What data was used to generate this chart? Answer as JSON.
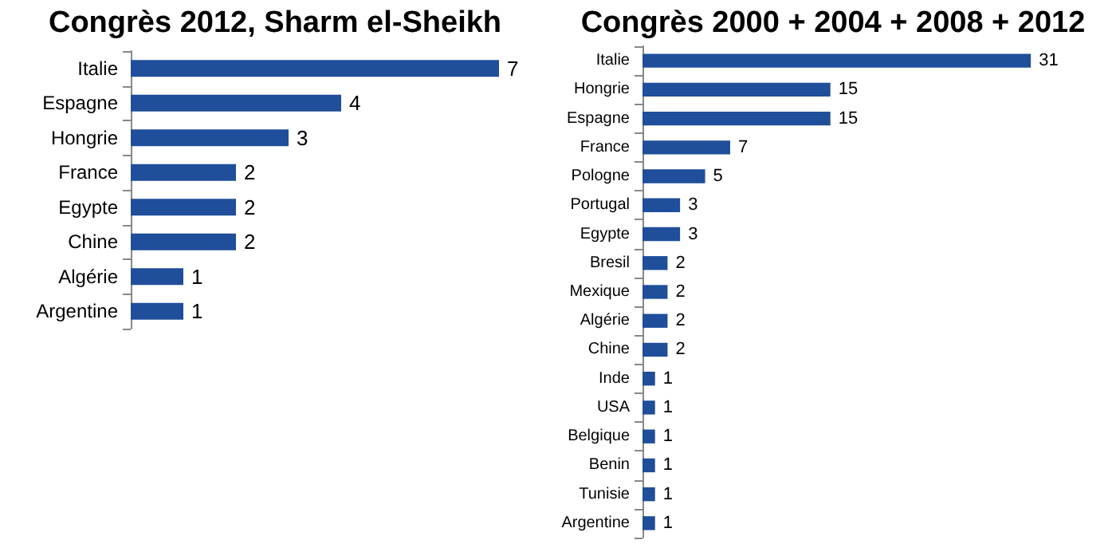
{
  "chart_data": [
    {
      "type": "bar",
      "orientation": "horizontal",
      "title": "Congrès 2012, Sharm el-Sheikh",
      "categories": [
        "Italie",
        "Espagne",
        "Hongrie",
        "France",
        "Egypte",
        "Chine",
        "Algérie",
        "Argentine"
      ],
      "values": [
        7,
        4,
        3,
        2,
        2,
        2,
        1,
        1
      ],
      "color": "#1f4e9a",
      "data_labels": true
    },
    {
      "type": "bar",
      "orientation": "horizontal",
      "title": "Congrès 2000 + 2004 + 2008 + 2012",
      "categories": [
        "Italie",
        "Hongrie",
        "Espagne",
        "France",
        "Pologne",
        "Portugal",
        "Egypte",
        "Bresil",
        "Mexique",
        "Algérie",
        "Chine",
        "Inde",
        "USA",
        "Belgique",
        "Benin",
        "Tunisie",
        "Argentine"
      ],
      "values": [
        31,
        15,
        15,
        7,
        5,
        3,
        3,
        2,
        2,
        2,
        2,
        1,
        1,
        1,
        1,
        1,
        1
      ],
      "color": "#1f4e9a",
      "data_labels": true
    }
  ]
}
